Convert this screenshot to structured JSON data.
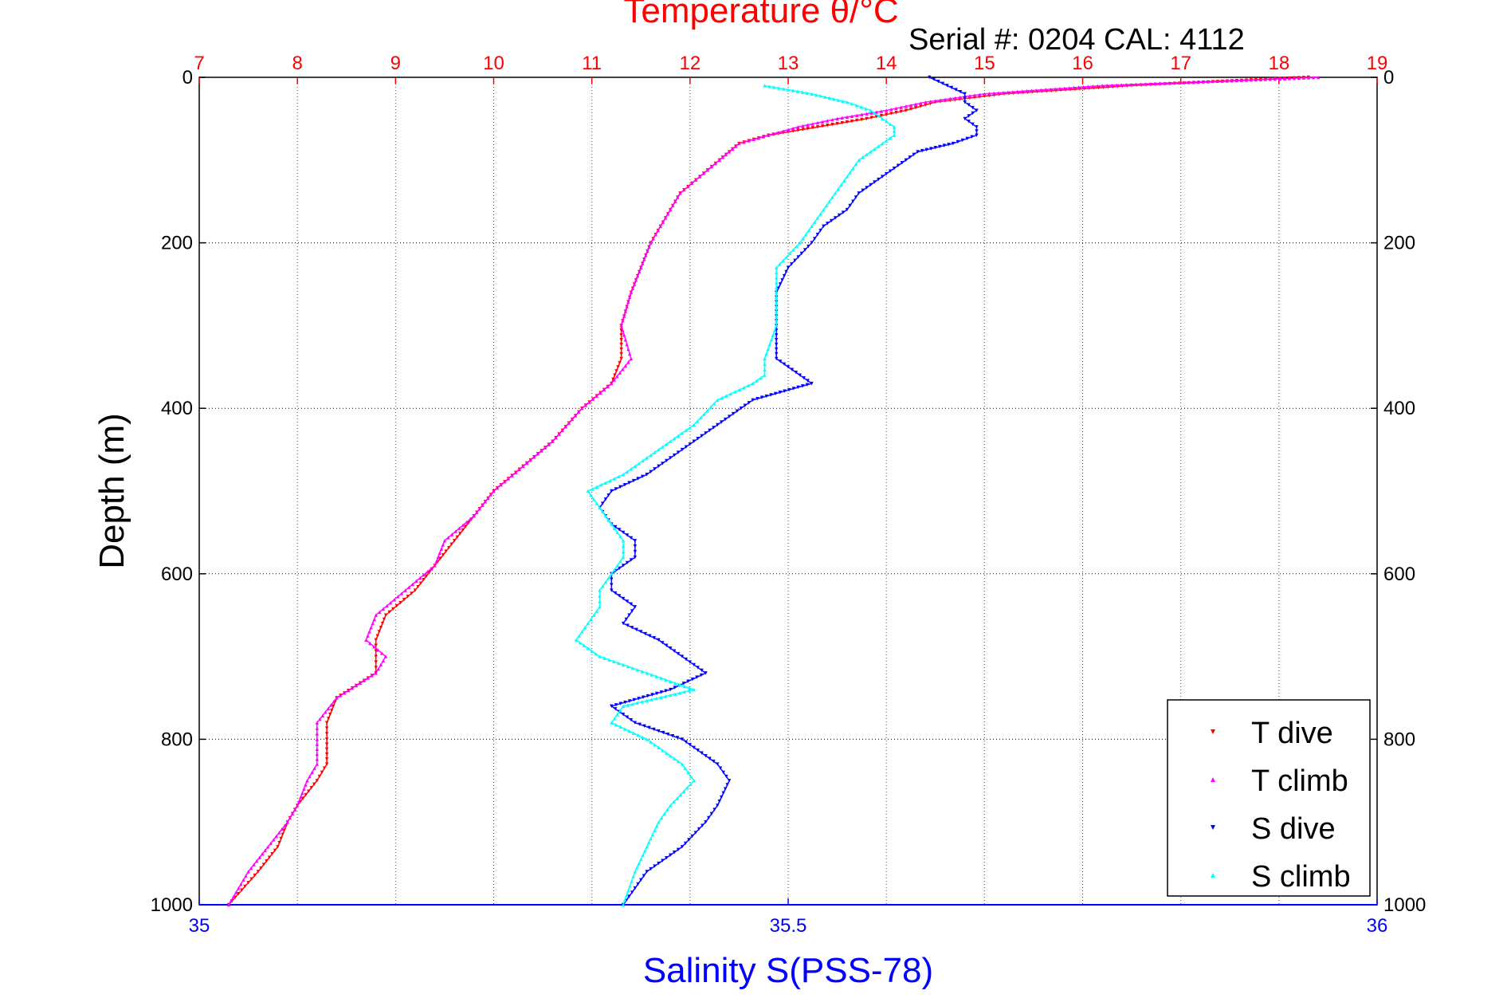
{
  "chart_data": {
    "type": "scatter",
    "title": "Temperature θ/°C",
    "subtitle": "Serial #: 0204  CAL: 4112",
    "ylabel": "Depth (m)",
    "xlabel": "Salinity S(PSS-78)",
    "top_axis": {
      "label": "Temperature θ/°C",
      "range": [
        7,
        19
      ],
      "ticks": [
        "7",
        "8",
        "9",
        "10",
        "11",
        "12",
        "13",
        "14",
        "15",
        "16",
        "17",
        "18",
        "19"
      ],
      "color": "#ff0000"
    },
    "bottom_axis": {
      "label": "Salinity S(PSS-78)",
      "range": [
        35,
        36
      ],
      "ticks": [
        "35",
        "35.5",
        "36"
      ],
      "color": "#0000ff"
    },
    "y_axis": {
      "range": [
        0,
        1000
      ],
      "reversed": true,
      "ticks": [
        "0",
        "200",
        "400",
        "600",
        "800",
        "1000"
      ]
    },
    "grid": true,
    "legend": {
      "placement": "bottom-right"
    },
    "series": [
      {
        "name": "T dive",
        "axis": "temperature",
        "color": "#ff0000",
        "marker": "triangle-down",
        "depth": [
          0,
          10,
          20,
          30,
          40,
          50,
          60,
          70,
          80,
          90,
          100,
          120,
          140,
          160,
          180,
          200,
          230,
          260,
          300,
          340,
          370,
          400,
          440,
          470,
          500,
          530,
          560,
          590,
          620,
          650,
          680,
          700,
          720,
          750,
          780,
          800,
          830,
          850,
          880,
          900,
          930,
          960,
          1000
        ],
        "values": [
          18.3,
          16.5,
          15.2,
          14.5,
          14.2,
          13.8,
          13.3,
          12.8,
          12.5,
          12.4,
          12.3,
          12.1,
          11.9,
          11.8,
          11.7,
          11.6,
          11.5,
          11.4,
          11.3,
          11.3,
          11.2,
          10.9,
          10.6,
          10.3,
          10.0,
          9.8,
          9.6,
          9.4,
          9.2,
          8.9,
          8.8,
          8.8,
          8.8,
          8.4,
          8.3,
          8.3,
          8.3,
          8.2,
          8.0,
          7.9,
          7.8,
          7.6,
          7.3
        ]
      },
      {
        "name": "T climb",
        "axis": "temperature",
        "color": "#ff00ff",
        "marker": "triangle-up",
        "depth": [
          0,
          10,
          20,
          30,
          40,
          50,
          60,
          70,
          80,
          90,
          100,
          120,
          140,
          160,
          180,
          200,
          230,
          260,
          300,
          340,
          370,
          400,
          440,
          470,
          500,
          530,
          560,
          590,
          620,
          650,
          680,
          700,
          720,
          750,
          780,
          800,
          830,
          850,
          880,
          900,
          930,
          960,
          1000
        ],
        "values": [
          18.4,
          16.2,
          15.0,
          14.4,
          14.0,
          13.5,
          13.1,
          12.8,
          12.5,
          12.4,
          12.3,
          12.1,
          11.9,
          11.8,
          11.7,
          11.6,
          11.5,
          11.4,
          11.3,
          11.4,
          11.2,
          10.9,
          10.6,
          10.3,
          10.0,
          9.8,
          9.5,
          9.4,
          9.1,
          8.8,
          8.7,
          8.9,
          8.8,
          8.4,
          8.2,
          8.2,
          8.2,
          8.1,
          8.0,
          7.9,
          7.7,
          7.5,
          7.3
        ]
      },
      {
        "name": "S dive",
        "axis": "salinity",
        "color": "#0000ff",
        "marker": "triangle-down",
        "depth": [
          0,
          20,
          30,
          40,
          50,
          60,
          70,
          80,
          90,
          100,
          120,
          140,
          160,
          180,
          200,
          230,
          260,
          300,
          340,
          360,
          370,
          390,
          420,
          450,
          480,
          500,
          520,
          540,
          560,
          580,
          600,
          620,
          640,
          660,
          680,
          700,
          720,
          740,
          760,
          780,
          800,
          830,
          850,
          880,
          900,
          930,
          960,
          1000
        ],
        "values": [
          35.62,
          35.65,
          35.65,
          35.66,
          35.65,
          35.66,
          35.66,
          35.64,
          35.61,
          35.6,
          35.58,
          35.56,
          35.55,
          35.53,
          35.52,
          35.5,
          35.49,
          35.49,
          35.49,
          35.51,
          35.52,
          35.47,
          35.44,
          35.41,
          35.38,
          35.35,
          35.34,
          35.35,
          35.37,
          35.37,
          35.35,
          35.35,
          35.37,
          35.36,
          35.39,
          35.41,
          35.43,
          35.4,
          35.35,
          35.37,
          35.41,
          35.44,
          35.45,
          35.44,
          35.43,
          35.41,
          35.38,
          35.36
        ]
      },
      {
        "name": "S climb",
        "axis": "salinity",
        "color": "#00ffff",
        "marker": "triangle-up",
        "depth": [
          10,
          20,
          30,
          40,
          50,
          60,
          70,
          80,
          90,
          100,
          120,
          140,
          160,
          180,
          200,
          230,
          260,
          300,
          340,
          360,
          370,
          390,
          420,
          450,
          480,
          500,
          520,
          540,
          560,
          580,
          600,
          620,
          640,
          660,
          680,
          700,
          720,
          740,
          760,
          780,
          800,
          830,
          850,
          880,
          900,
          930,
          960,
          1000
        ],
        "values": [
          35.48,
          35.52,
          35.55,
          35.57,
          35.58,
          35.59,
          35.59,
          35.58,
          35.57,
          35.56,
          35.55,
          35.54,
          35.53,
          35.52,
          35.51,
          35.49,
          35.49,
          35.49,
          35.48,
          35.48,
          35.47,
          35.44,
          35.42,
          35.39,
          35.36,
          35.33,
          35.34,
          35.35,
          35.36,
          35.36,
          35.35,
          35.34,
          35.34,
          35.33,
          35.32,
          35.34,
          35.38,
          35.42,
          35.36,
          35.35,
          35.38,
          35.41,
          35.42,
          35.4,
          35.39,
          35.38,
          35.37,
          35.36
        ]
      }
    ]
  }
}
